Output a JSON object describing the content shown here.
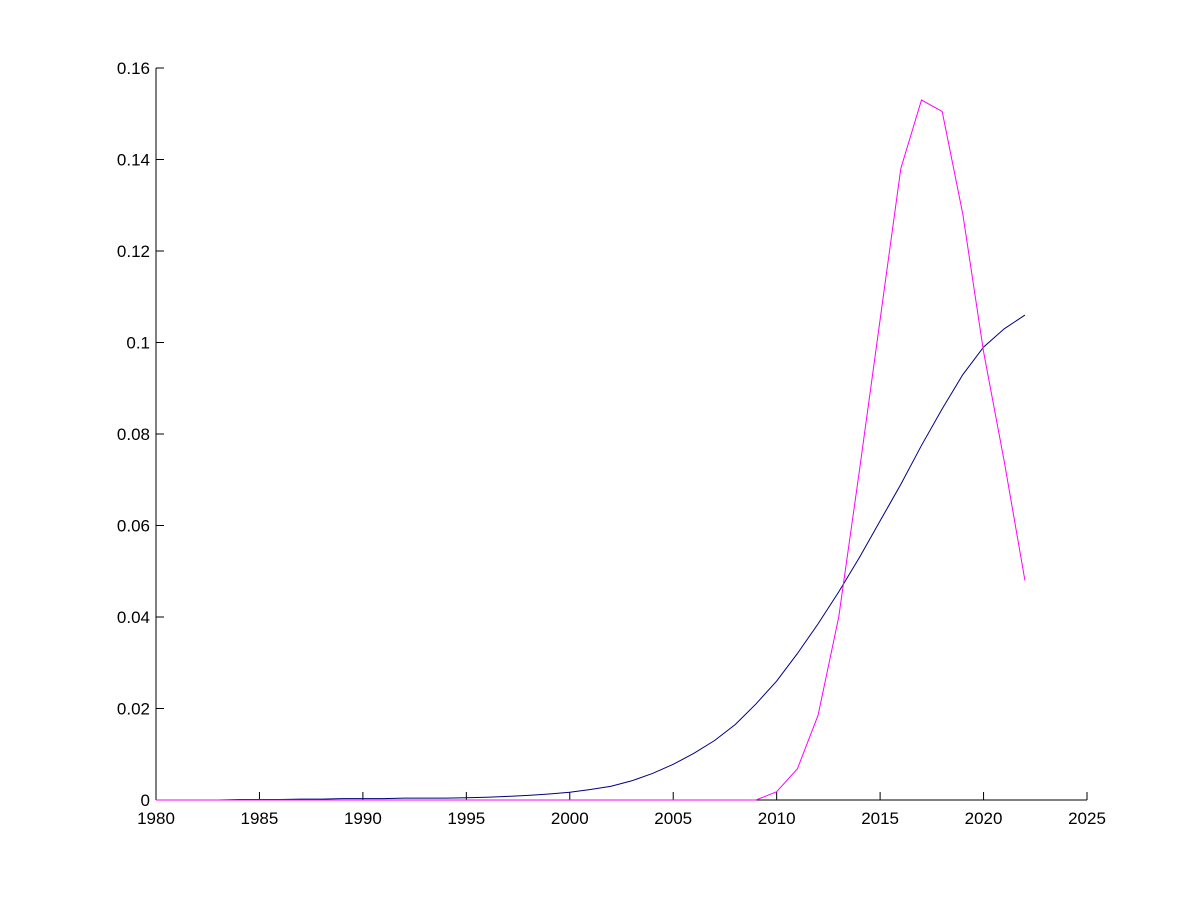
{
  "chart_data": {
    "type": "line",
    "x": [
      1980,
      1981,
      1982,
      1983,
      1984,
      1985,
      1986,
      1987,
      1988,
      1989,
      1990,
      1991,
      1992,
      1993,
      1994,
      1995,
      1996,
      1997,
      1998,
      1999,
      2000,
      2001,
      2002,
      2003,
      2004,
      2005,
      2006,
      2007,
      2008,
      2009,
      2010,
      2011,
      2012,
      2013,
      2014,
      2015,
      2016,
      2017,
      2018,
      2019,
      2020,
      2021,
      2022
    ],
    "series": [
      {
        "color": "#000080",
        "values": [
          0,
          0,
          0,
          0,
          0.0001,
          0.0001,
          0.0001,
          0.0002,
          0.0002,
          0.0003,
          0.0003,
          0.0003,
          0.0004,
          0.0004,
          0.0004,
          0.0005,
          0.0006,
          0.0008,
          0.001,
          0.0013,
          0.0017,
          0.0023,
          0.003,
          0.0042,
          0.0058,
          0.0078,
          0.0102,
          0.013,
          0.0165,
          0.021,
          0.026,
          0.032,
          0.0385,
          0.0455,
          0.053,
          0.061,
          0.069,
          0.0775,
          0.0855,
          0.093,
          0.099,
          0.103,
          0.106
        ]
      },
      {
        "color": "#ff00ff",
        "values": [
          0,
          0,
          0,
          0,
          0,
          0,
          0,
          0,
          0,
          0,
          0,
          0,
          0,
          0,
          0,
          0,
          0,
          0,
          0,
          0,
          0,
          0,
          0,
          0,
          0,
          0,
          0,
          0,
          0,
          0,
          0.0018,
          0.0068,
          0.0185,
          0.04,
          0.072,
          0.105,
          0.138,
          0.153,
          0.1505,
          0.128,
          0.098,
          0.074,
          0.048
        ]
      }
    ],
    "xlim": [
      1980,
      2025
    ],
    "xticks": [
      1980,
      1985,
      1990,
      1995,
      2000,
      2005,
      2010,
      2015,
      2020,
      2025
    ],
    "ylim": [
      0,
      0.16
    ],
    "yticks": [
      0,
      0.02,
      0.04,
      0.06,
      0.08,
      0.1,
      0.12,
      0.14,
      0.16
    ]
  }
}
